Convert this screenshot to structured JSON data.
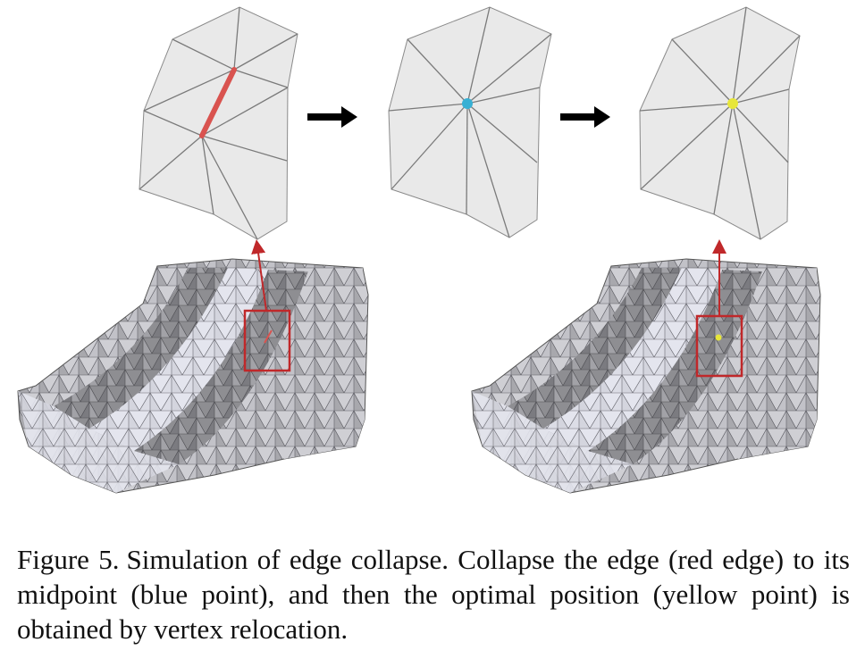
{
  "figure": {
    "caption_label": "Figure 5.",
    "caption_text": "Simulation of edge collapse.  Collapse the edge (red edge) to its midpoint (blue point), and then the optimal position (yellow point) is obtained by vertex relocation."
  },
  "colors": {
    "collapsed_edge": "#d9534f",
    "midpoint": "#38b0d4",
    "optimal_point": "#e7e63a",
    "highlight_box": "#c0282a",
    "arrow": "#000000"
  }
}
